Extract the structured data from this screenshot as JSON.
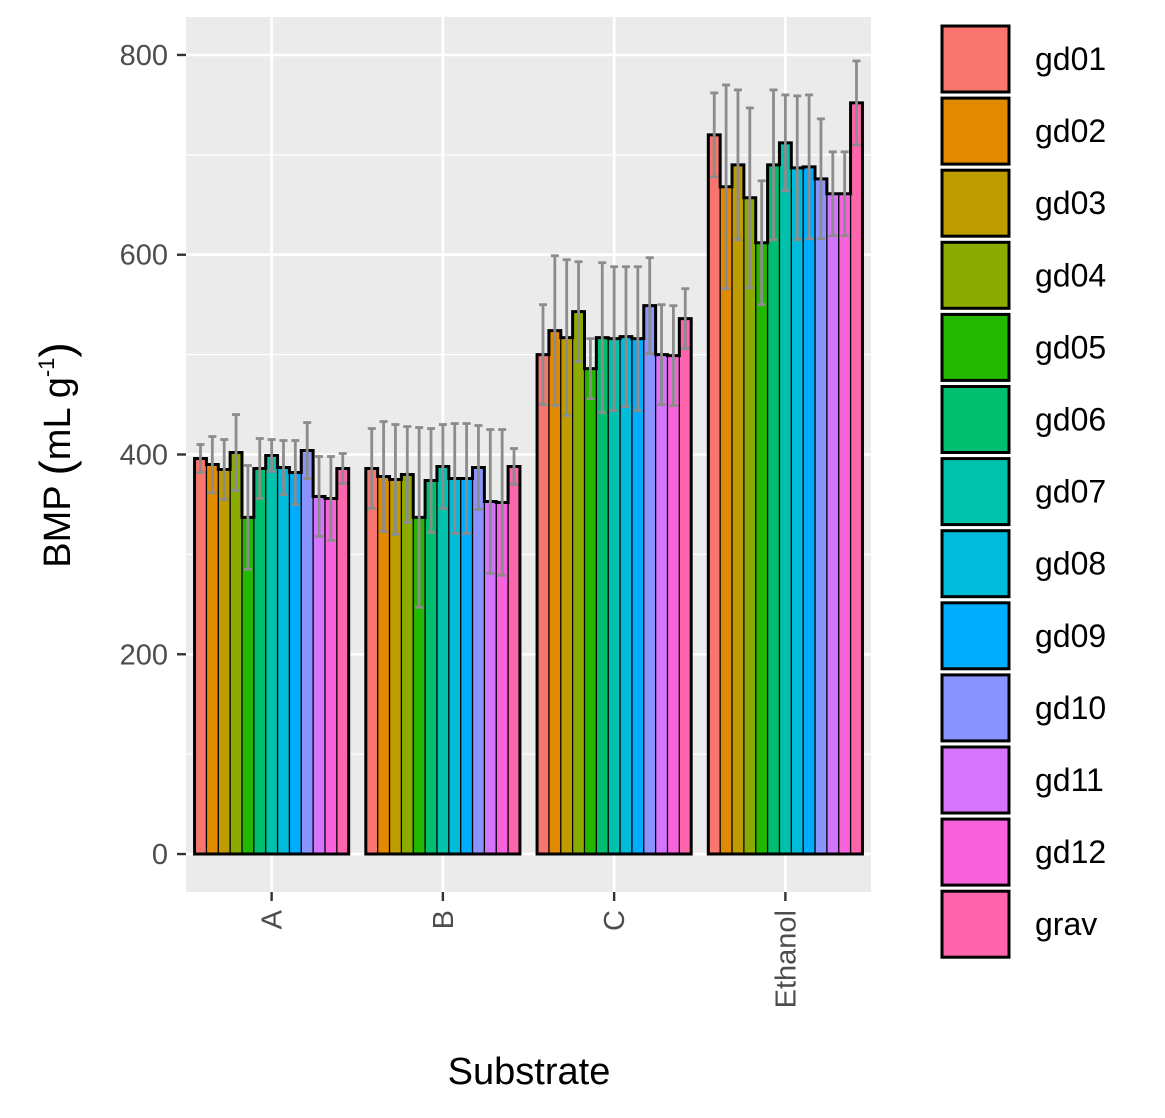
{
  "chart_data": {
    "type": "bar",
    "xlabel": "Substrate",
    "ylabel": {
      "prefix": "BMP ",
      "open": "(",
      "body": "mL g",
      "sup": "-1",
      "close": ")"
    },
    "ylim": [
      -38,
      838
    ],
    "yticks": [
      0,
      200,
      400,
      600,
      800
    ],
    "grid": true,
    "legend_position": "right",
    "categories": [
      "A",
      "B",
      "C",
      "Ethanol"
    ],
    "series": [
      {
        "name": "gd01",
        "color": "#F8766D",
        "values": [
          396,
          386,
          500,
          720
        ],
        "errors": [
          14,
          40,
          50,
          42
        ]
      },
      {
        "name": "gd02",
        "color": "#E18A00",
        "values": [
          390,
          378,
          524,
          668
        ],
        "errors": [
          28,
          55,
          75,
          102
        ]
      },
      {
        "name": "gd03",
        "color": "#BE9C00",
        "values": [
          385,
          375,
          517,
          690
        ],
        "errors": [
          30,
          55,
          78,
          75
        ]
      },
      {
        "name": "gd04",
        "color": "#8CAB00",
        "values": [
          402,
          380,
          543,
          657
        ],
        "errors": [
          38,
          48,
          50,
          90
        ]
      },
      {
        "name": "gd05",
        "color": "#24B700",
        "values": [
          337,
          337,
          486,
          612
        ],
        "errors": [
          52,
          90,
          30,
          62
        ]
      },
      {
        "name": "gd06",
        "color": "#00BE70",
        "values": [
          386,
          374,
          517,
          690
        ],
        "errors": [
          30,
          52,
          75,
          75
        ]
      },
      {
        "name": "gd07",
        "color": "#00C1AB",
        "values": [
          399,
          388,
          516,
          712
        ],
        "errors": [
          16,
          42,
          72,
          48
        ]
      },
      {
        "name": "gd08",
        "color": "#00BBDA",
        "values": [
          387,
          376,
          518,
          687
        ],
        "errors": [
          27,
          55,
          70,
          72
        ]
      },
      {
        "name": "gd09",
        "color": "#00ACFC",
        "values": [
          382,
          376,
          516,
          688
        ],
        "errors": [
          32,
          55,
          72,
          72
        ]
      },
      {
        "name": "gd10",
        "color": "#8B93FF",
        "values": [
          404,
          387,
          549,
          676
        ],
        "errors": [
          28,
          42,
          48,
          60
        ]
      },
      {
        "name": "gd11",
        "color": "#D575FE",
        "values": [
          358,
          353,
          500,
          661
        ],
        "errors": [
          40,
          72,
          50,
          42
        ]
      },
      {
        "name": "gd12",
        "color": "#F962DD",
        "values": [
          356,
          352,
          499,
          661
        ],
        "errors": [
          42,
          73,
          50,
          42
        ]
      },
      {
        "name": "grav",
        "color": "#FF65AC",
        "values": [
          386,
          388,
          536,
          752
        ],
        "errors": [
          15,
          18,
          30,
          42
        ]
      }
    ]
  }
}
